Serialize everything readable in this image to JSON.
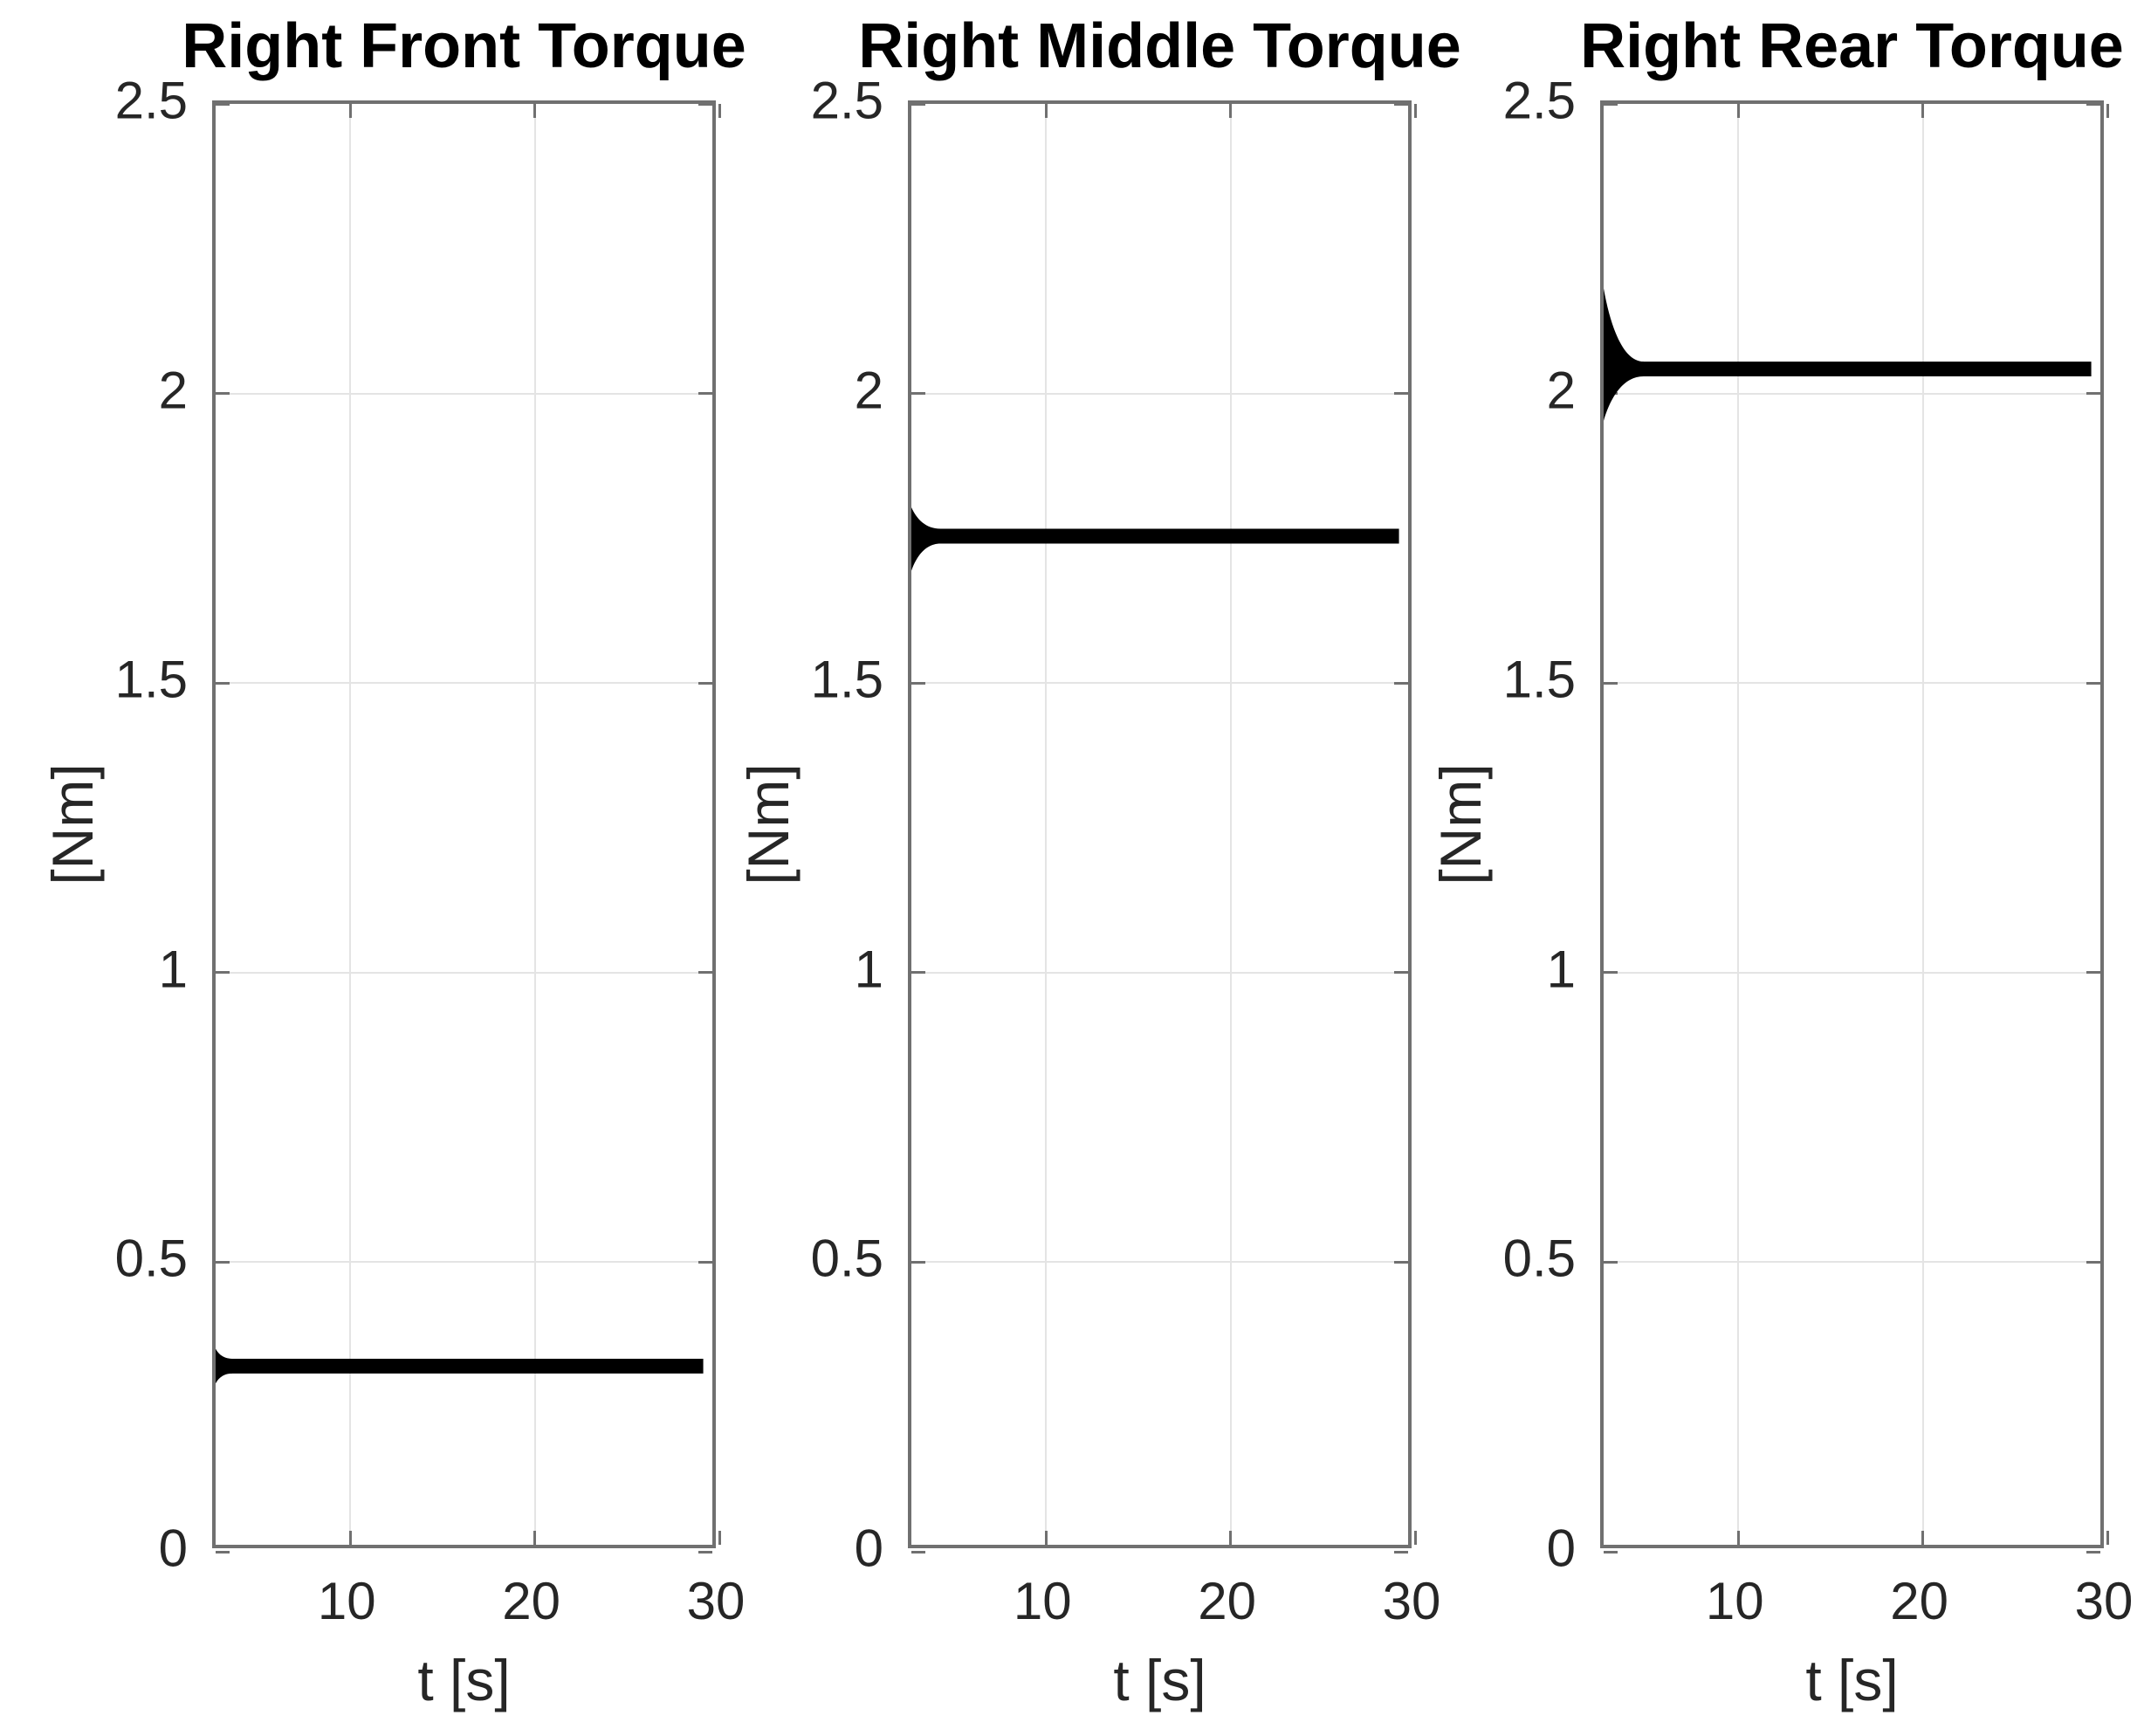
{
  "figure": {
    "background_color": "#ffffff",
    "line_color": "#000000",
    "axis_color": "#707070",
    "grid_color": "#e4e4e4",
    "text_color": "#262626"
  },
  "chart_data": [
    {
      "type": "line",
      "title": "Right Front Torque",
      "xlabel": "t [s]",
      "ylabel": "[Nm]",
      "xlim": [
        2.7,
        30
      ],
      "ylim": [
        0,
        2.5
      ],
      "xticks": [
        10,
        20,
        30
      ],
      "xtick_labels": [
        "10",
        "20",
        "30"
      ],
      "yticks": [
        0,
        0.5,
        1,
        1.5,
        2,
        2.5
      ],
      "ytick_labels": [
        "0",
        "0.5",
        "1",
        "1.5",
        "2",
        "2.5"
      ],
      "grid": true,
      "legend": null,
      "series": [
        {
          "steady_value": 0.31,
          "transient_max": 0.34,
          "transient_min": 0.28,
          "settles_by_t": 3.6,
          "t_start": 2.7,
          "t_end": 29.5,
          "points": [
            [
              2.7,
              0.31
            ],
            [
              29.5,
              0.31
            ]
          ]
        }
      ]
    },
    {
      "type": "line",
      "title": "Right Middle Torque",
      "xlabel": "t [s]",
      "ylabel": "[Nm]",
      "xlim": [
        2.7,
        30
      ],
      "ylim": [
        0,
        2.5
      ],
      "xticks": [
        10,
        20,
        30
      ],
      "xtick_labels": [
        "10",
        "20",
        "30"
      ],
      "yticks": [
        0,
        0.5,
        1,
        1.5,
        2,
        2.5
      ],
      "ytick_labels": [
        "0",
        "0.5",
        "1",
        "1.5",
        "2",
        "2.5"
      ],
      "grid": true,
      "legend": null,
      "series": [
        {
          "steady_value": 1.75,
          "transient_max": 1.8,
          "transient_min": 1.69,
          "settles_by_t": 4.3,
          "t_start": 2.7,
          "t_end": 29.5,
          "points": [
            [
              2.7,
              1.75
            ],
            [
              29.5,
              1.75
            ]
          ]
        }
      ]
    },
    {
      "type": "line",
      "title": "Right Rear Torque",
      "xlabel": "t [s]",
      "ylabel": "[Nm]",
      "xlim": [
        2.7,
        30
      ],
      "ylim": [
        0,
        2.5
      ],
      "xticks": [
        10,
        20,
        30
      ],
      "xtick_labels": [
        "10",
        "20",
        "30"
      ],
      "yticks": [
        0,
        0.5,
        1,
        1.5,
        2,
        2.5
      ],
      "ytick_labels": [
        "0",
        "0.5",
        "1",
        "1.5",
        "2",
        "2.5"
      ],
      "grid": true,
      "legend": null,
      "series": [
        {
          "steady_value": 2.04,
          "transient_max": 2.18,
          "transient_min": 1.95,
          "settles_by_t": 4.9,
          "t_start": 2.7,
          "t_end": 29.5,
          "points": [
            [
              2.7,
              2.04
            ],
            [
              29.5,
              2.04
            ]
          ]
        }
      ]
    }
  ]
}
